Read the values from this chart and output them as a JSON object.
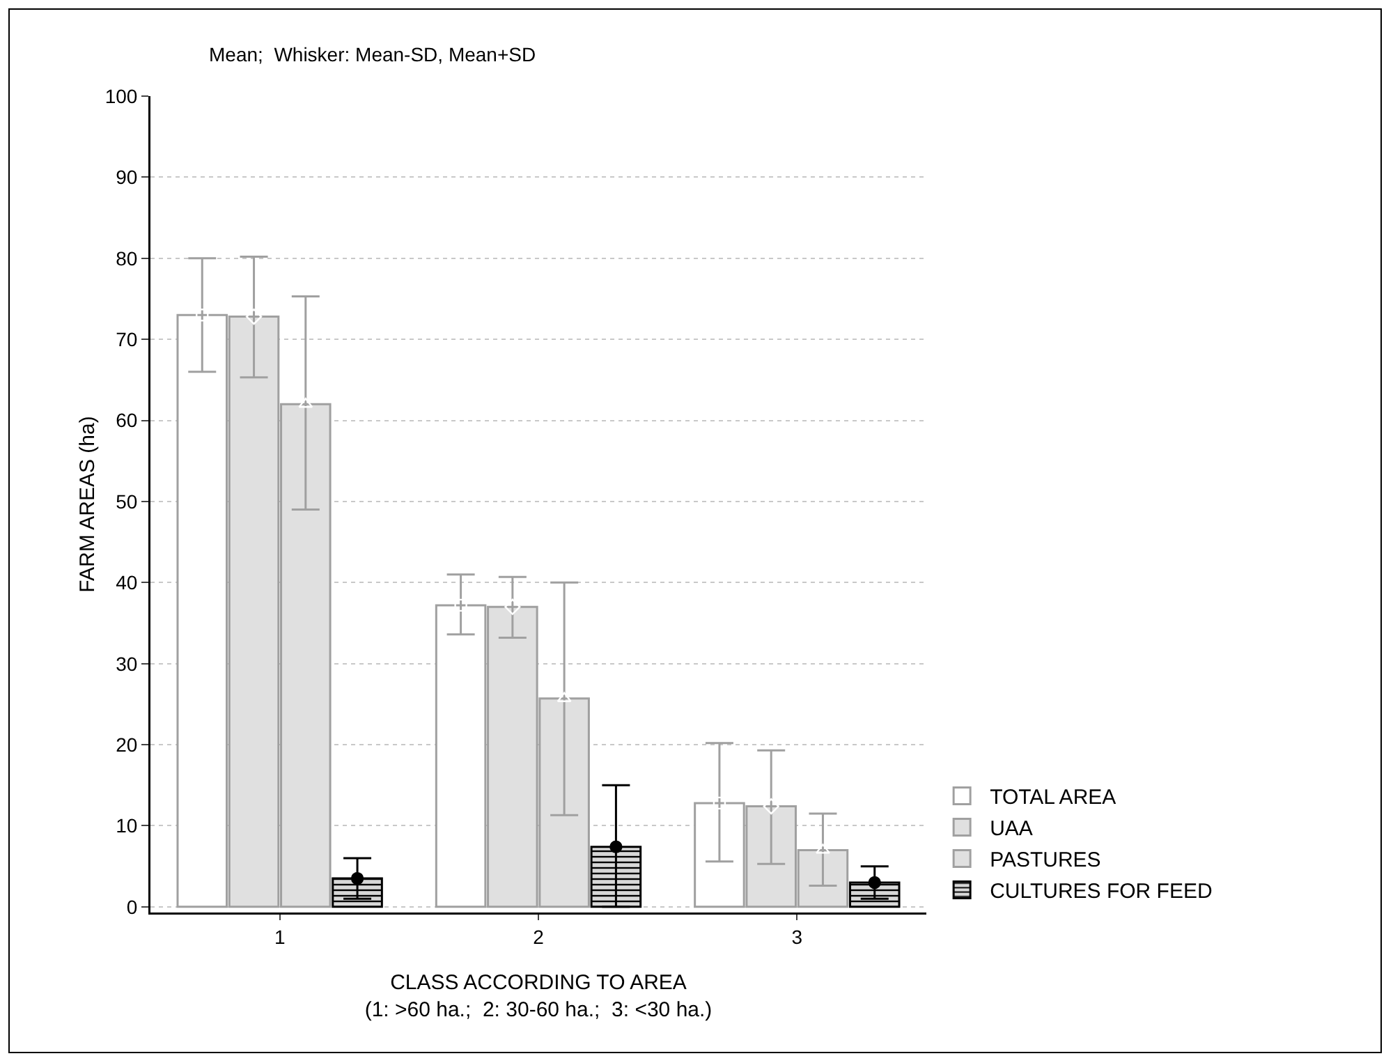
{
  "chart_data": {
    "type": "bar",
    "title": "Mean;  Whisker: Mean-SD, Mean+SD",
    "xlabel": "CLASS ACCORDING TO AREA\n(1: >60 ha.;  2: 30-60 ha.;  3: <30 ha.)",
    "ylabel": "FARM AREAS (ha)",
    "categories": [
      "1",
      "2",
      "3"
    ],
    "series": [
      {
        "name": "TOTAL AREA",
        "color": "#ffffff",
        "marker": "square",
        "values": [
          73,
          37.2,
          12.8
        ],
        "errors": [
          [
            66,
            80
          ],
          [
            33.6,
            41
          ],
          [
            5.6,
            20.2
          ]
        ]
      },
      {
        "name": "UAA",
        "color": "#e0e0e0",
        "marker": "diamond",
        "values": [
          72.8,
          37,
          12.4
        ],
        "errors": [
          [
            65.3,
            80.2
          ],
          [
            33.2,
            40.7
          ],
          [
            5.3,
            19.3
          ]
        ]
      },
      {
        "name": "PASTURES",
        "color": "#e0e0e0",
        "marker": "triangle",
        "values": [
          62,
          25.7,
          7
        ],
        "errors": [
          [
            49,
            75.3
          ],
          [
            11.3,
            40
          ],
          [
            2.6,
            11.5
          ]
        ]
      },
      {
        "name": "CULTURES FOR FEED",
        "color": "#000000",
        "marker": "circle",
        "values": [
          3.5,
          7.4,
          3
        ],
        "errors": [
          [
            1,
            6
          ],
          [
            0,
            15
          ],
          [
            1,
            5
          ]
        ]
      }
    ],
    "ylim": [
      -0.7,
      100
    ],
    "yticks": [
      0,
      10,
      20,
      30,
      40,
      50,
      60,
      70,
      80,
      90,
      100
    ],
    "grid": "y",
    "legend": "bottom right"
  }
}
